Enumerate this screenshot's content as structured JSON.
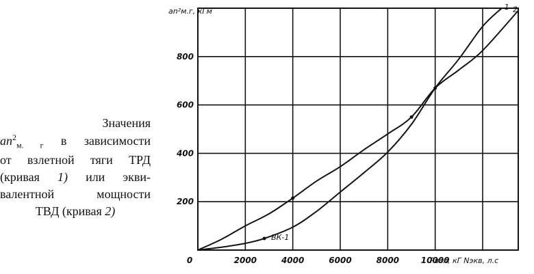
{
  "caption": {
    "line1": "Значения",
    "line2_sym": "an",
    "line2_sup": "2",
    "line2_sub": "м. г",
    "line2_rest": "в зависимости",
    "line3": "от взлетной тяги ТРД",
    "line4_a": "(кривая",
    "line4_num": "1)",
    "line4_b": "или экви-",
    "line5": "валентной мощности",
    "line6_a": "ТВД (кривая",
    "line6_num": "2)"
  },
  "chart_data": {
    "type": "line",
    "title": "",
    "ylabel": "an²м.г, кГм",
    "xlabel": "Pвзл, кГ  Nэкв, л.с",
    "xlim": [
      0,
      13500
    ],
    "ylim": [
      0,
      1000
    ],
    "x_ticks": [
      "0",
      "2000",
      "4000",
      "6000",
      "8000",
      "10000"
    ],
    "y_ticks": [
      "200",
      "400",
      "600",
      "800"
    ],
    "series": [
      {
        "name": "1",
        "points": [
          [
            0,
            0
          ],
          [
            1000,
            12
          ],
          [
            2000,
            28
          ],
          [
            2800,
            48
          ],
          [
            4000,
            95
          ],
          [
            5000,
            160
          ],
          [
            6000,
            240
          ],
          [
            7000,
            320
          ],
          [
            8000,
            405
          ],
          [
            9000,
            520
          ],
          [
            10000,
            670
          ],
          [
            11000,
            790
          ],
          [
            12000,
            925
          ],
          [
            12800,
            1000
          ]
        ]
      },
      {
        "name": "2",
        "points": [
          [
            0,
            0
          ],
          [
            1000,
            45
          ],
          [
            2000,
            100
          ],
          [
            3000,
            150
          ],
          [
            4000,
            215
          ],
          [
            5000,
            285
          ],
          [
            6000,
            345
          ],
          [
            7000,
            415
          ],
          [
            8000,
            480
          ],
          [
            9000,
            550
          ],
          [
            10000,
            670
          ],
          [
            11000,
            745
          ],
          [
            12000,
            825
          ],
          [
            13500,
            990
          ]
        ]
      }
    ],
    "annotations": [
      {
        "text": "ВК-1",
        "x": 2800,
        "y": 48
      }
    ]
  }
}
